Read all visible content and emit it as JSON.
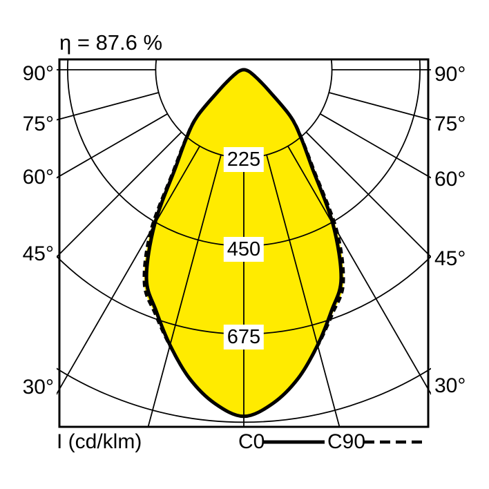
{
  "header": {
    "efficiency": "η = 87.6 %"
  },
  "axes": {
    "angle_labels": [
      "90°",
      "75°",
      "60°",
      "45°",
      "30°"
    ],
    "intensity_tick_labels": [
      "225",
      "450",
      "675"
    ],
    "unit_label": "I (cd/klm)"
  },
  "legend": {
    "c0": "C0",
    "c90": "C90"
  },
  "colors": {
    "curve_fill": "#ffeb00",
    "line": "#000000",
    "background": "#ffffff",
    "label_background": "#ffffff"
  },
  "chart_data": {
    "type": "polar_photometric_intensity",
    "title": "η = 87.6 %",
    "efficiency_percent": 87.6,
    "unit": "cd/klm",
    "angle_ticks_deg": [
      0,
      15,
      30,
      45,
      60,
      75,
      90
    ],
    "labeled_angle_ticks_deg": [
      30,
      45,
      60,
      75,
      90
    ],
    "radial_ticks": [
      225,
      450,
      675,
      900
    ],
    "labeled_radial_ticks": [
      225,
      450,
      675
    ],
    "symmetric": true,
    "gamma_deg": [
      0,
      5,
      10,
      15,
      20,
      25,
      30,
      35,
      40,
      45,
      50,
      55,
      60,
      65,
      70,
      75,
      80,
      85,
      90
    ],
    "series": [
      {
        "name": "C0",
        "line_style": "solid",
        "values": [
          885,
          855,
          800,
          728,
          655,
          588,
          455,
          303,
          228,
          168,
          85,
          50,
          32,
          22,
          16,
          11,
          7,
          4,
          2
        ]
      },
      {
        "name": "C90",
        "line_style": "dashed",
        "values": [
          885,
          855,
          800,
          730,
          663,
          602,
          477,
          313,
          232,
          172,
          88,
          52,
          34,
          23,
          16,
          11,
          7,
          4,
          2
        ]
      }
    ]
  }
}
